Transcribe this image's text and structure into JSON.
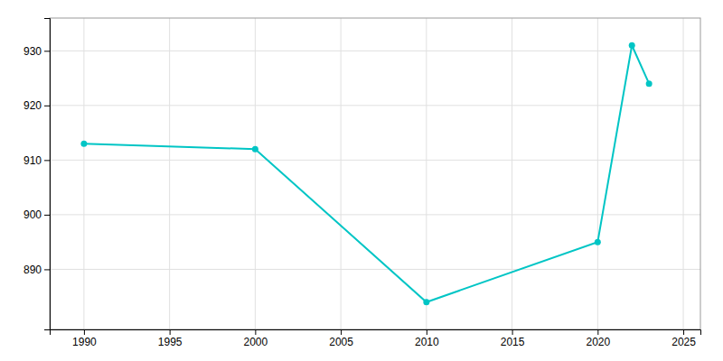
{
  "chart_data": {
    "type": "line",
    "x": [
      1990,
      2000,
      2010,
      2020,
      2022,
      2023
    ],
    "values": [
      913,
      912,
      884,
      895,
      931,
      924
    ],
    "color": "#00C5C5",
    "marker": "circle",
    "xlim": [
      1988,
      2026
    ],
    "ylim": [
      879,
      936
    ],
    "xticks": [
      1990,
      1995,
      2000,
      2005,
      2010,
      2015,
      2020,
      2025
    ],
    "yticks": [
      890,
      900,
      910,
      920,
      930
    ],
    "grid": true
  }
}
